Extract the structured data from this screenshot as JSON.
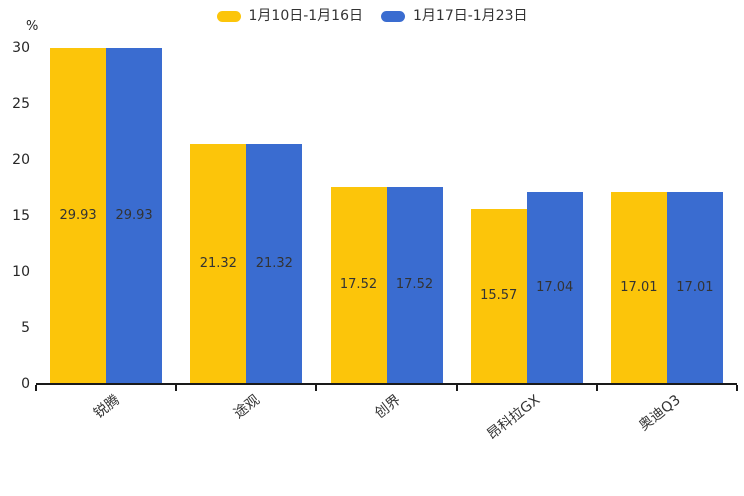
{
  "chart_data": {
    "type": "bar",
    "title": "",
    "xlabel": "",
    "ylabel": "%",
    "categories": [
      "锐腾",
      "途观",
      "创界",
      "昂科拉GX",
      "奥迪Q3"
    ],
    "series": [
      {
        "name": "1月10日-1月16日",
        "color": "#FCC50A",
        "values": [
          29.93,
          21.32,
          17.52,
          15.57,
          17.01
        ]
      },
      {
        "name": "1月17日-1月23日",
        "color": "#3A6CD0",
        "values": [
          29.93,
          21.32,
          17.52,
          17.04,
          17.01
        ]
      }
    ],
    "ylim": [
      0,
      30
    ],
    "yticks": [
      0,
      5,
      10,
      15,
      20,
      25,
      30
    ],
    "grid": false,
    "legend_position": "top-center",
    "data_labels": "inside-center",
    "value_label_color": "#333333",
    "axis_color": "#1a1a1a",
    "tick_label_color": "#262626",
    "background_color": "#ffffff"
  }
}
